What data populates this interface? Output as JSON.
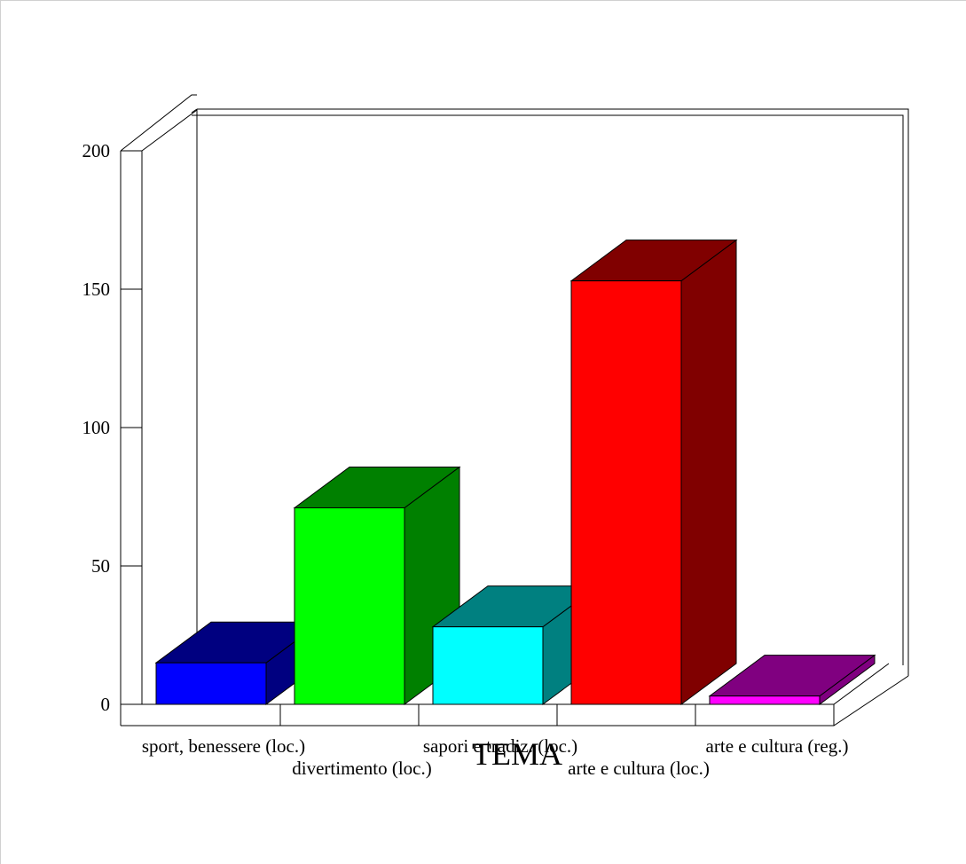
{
  "chart_data": {
    "type": "bar",
    "categories": [
      "sport, benessere (loc.)",
      "divertimento (loc.)",
      "sapori e tradiz. (loc.)",
      "arte e cultura (loc.)",
      "arte e cultura (reg.)"
    ],
    "values": [
      15,
      71,
      28,
      153,
      3
    ],
    "title": "",
    "xlabel": "TEMA",
    "ylabel": "",
    "ylim": [
      0,
      200
    ],
    "yticks": [
      0,
      50,
      100,
      150,
      200
    ],
    "grid": false,
    "legend": "none",
    "style": "3d",
    "colors": [
      {
        "front": "#0000ff",
        "side": "#000080"
      },
      {
        "front": "#00ff00",
        "side": "#008000"
      },
      {
        "front": "#00ffff",
        "side": "#008080"
      },
      {
        "front": "#ff0000",
        "side": "#800000"
      },
      {
        "front": "#ff00ff",
        "side": "#800080"
      }
    ]
  }
}
